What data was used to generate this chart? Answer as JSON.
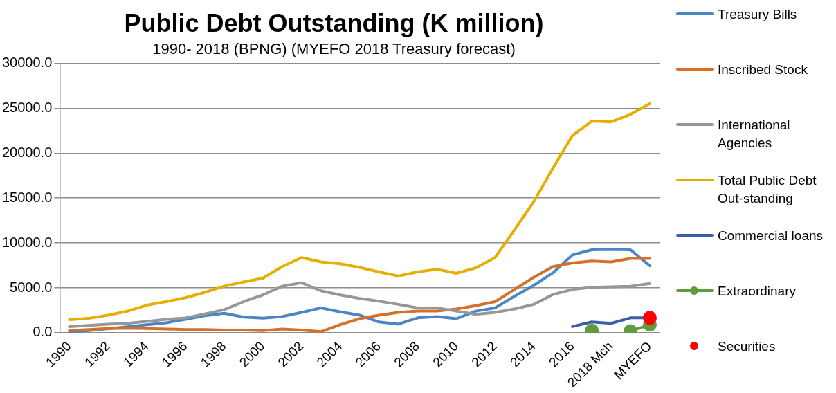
{
  "chart_data": {
    "type": "line",
    "title": "Public Debt Outstanding (K million)",
    "subtitle": "1990- 2018 (BPNG) (MYEFO 2018 Treasury forecast)",
    "categories": [
      "1990",
      null,
      "1992",
      null,
      "1994",
      null,
      "1996",
      null,
      "1998",
      null,
      "2000",
      null,
      "2002",
      null,
      "2004",
      null,
      "2006",
      null,
      "2008",
      null,
      "2010",
      null,
      "2012",
      null,
      "2014",
      null,
      "2016",
      null,
      "2018 Mch",
      null,
      "MYEFO"
    ],
    "ylim": [
      0,
      30000
    ],
    "yticks": [
      {
        "value": 0,
        "label": "0.0"
      },
      {
        "value": 5000,
        "label": "5000.0"
      },
      {
        "value": 10000,
        "label": "10000.0"
      },
      {
        "value": 15000,
        "label": "15000.0"
      },
      {
        "value": 20000,
        "label": "20000.0"
      },
      {
        "value": 25000,
        "label": "25000.0"
      },
      {
        "value": 30000,
        "label": "30000.0"
      }
    ],
    "grid": "y",
    "legend": "right",
    "marker": "none",
    "series": [
      {
        "name": "Treasury Bills",
        "color": "#4a86c5",
        "values": [
          60,
          240,
          450,
          660,
          900,
          1110,
          1500,
          1900,
          2170,
          1750,
          1630,
          1810,
          2260,
          2770,
          2320,
          1960,
          1200,
          960,
          1660,
          1810,
          1570,
          2410,
          2770,
          4060,
          5270,
          6680,
          8670,
          9240,
          9270,
          9240,
          7460
        ]
      },
      {
        "name": "Inscribed Stock",
        "color": "#d4702a",
        "values": [
          240,
          360,
          480,
          510,
          480,
          420,
          360,
          360,
          300,
          300,
          240,
          420,
          300,
          120,
          900,
          1570,
          1960,
          2260,
          2410,
          2410,
          2650,
          3010,
          3460,
          4820,
          6170,
          7370,
          7770,
          7980,
          7890,
          8280,
          8280
        ]
      },
      {
        "name": "International Agencies",
        "color": "#979797",
        "values": [
          690,
          810,
          960,
          1050,
          1260,
          1500,
          1650,
          2100,
          2560,
          3460,
          4210,
          5180,
          5570,
          4670,
          4210,
          3820,
          3520,
          3160,
          2770,
          2770,
          2410,
          2050,
          2260,
          2650,
          3160,
          4270,
          4820,
          5060,
          5120,
          5180,
          5480
        ]
      },
      {
        "name": "Total Public Debt Out-standing",
        "color": "#e5ae00",
        "values": [
          1450,
          1600,
          1950,
          2400,
          3070,
          3460,
          3900,
          4500,
          5180,
          5660,
          6080,
          7370,
          8370,
          7890,
          7680,
          7280,
          6770,
          6320,
          6770,
          7070,
          6620,
          7220,
          8370,
          11440,
          14600,
          18360,
          21970,
          23570,
          23480,
          24320,
          25520
        ]
      },
      {
        "name": "Commercial loans",
        "color": "#3a5eab",
        "values": [
          null,
          null,
          null,
          null,
          null,
          null,
          null,
          null,
          null,
          null,
          null,
          null,
          null,
          null,
          null,
          null,
          null,
          null,
          null,
          null,
          null,
          null,
          null,
          null,
          null,
          null,
          690,
          1200,
          1050,
          1660,
          1660
        ]
      },
      {
        "name": "Extraordinary",
        "color": "#629a3f",
        "marker": "circle",
        "values": [
          null,
          null,
          null,
          null,
          null,
          null,
          null,
          null,
          null,
          null,
          null,
          null,
          null,
          null,
          null,
          null,
          null,
          null,
          null,
          null,
          null,
          null,
          null,
          null,
          null,
          null,
          null,
          240,
          null,
          180,
          900
        ]
      },
      {
        "name": "Securities",
        "type": "scatter",
        "color": "#ff0000",
        "marker": "circle",
        "values": [
          null,
          null,
          null,
          null,
          null,
          null,
          null,
          null,
          null,
          null,
          null,
          null,
          null,
          null,
          null,
          null,
          null,
          null,
          null,
          null,
          null,
          null,
          null,
          null,
          null,
          null,
          null,
          null,
          null,
          null,
          1660
        ]
      }
    ]
  }
}
